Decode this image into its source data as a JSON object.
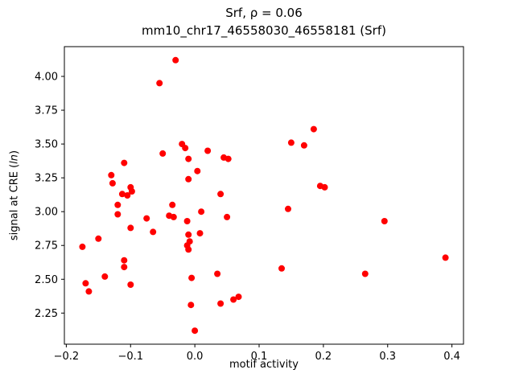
{
  "chart_data": {
    "type": "scatter",
    "title": "Srf, ρ = 0.06",
    "subtitle": "mm10_chr17_46558030_46558181 (Srf)",
    "xlabel": "motif activity",
    "ylabel": "signal at CRE (ln)",
    "ylabel_parts": {
      "prefix": "signal at CRE (",
      "italic": "ln",
      "suffix": ")"
    },
    "point_color": "#ff0000",
    "grid": false,
    "legend": "none",
    "xlim": [
      -0.203,
      0.418
    ],
    "ylim": [
      2.02,
      4.22
    ],
    "xtick_values": [
      -0.2,
      -0.1,
      0.0,
      0.1,
      0.2,
      0.3,
      0.4
    ],
    "xtick_labels": [
      "−0.2",
      "−0.1",
      "0.0",
      "0.1",
      "0.2",
      "0.3",
      "0.4"
    ],
    "ytick_values": [
      2.25,
      2.5,
      2.75,
      3.0,
      3.25,
      3.5,
      3.75,
      4.0
    ],
    "ytick_labels": [
      "2.25",
      "2.50",
      "2.75",
      "3.00",
      "3.25",
      "3.50",
      "3.75",
      "4.00"
    ],
    "points": [
      [
        -0.175,
        2.74
      ],
      [
        -0.17,
        2.47
      ],
      [
        -0.165,
        2.41
      ],
      [
        -0.15,
        2.8
      ],
      [
        -0.14,
        2.52
      ],
      [
        -0.13,
        3.27
      ],
      [
        -0.128,
        3.21
      ],
      [
        -0.12,
        3.05
      ],
      [
        -0.12,
        2.98
      ],
      [
        -0.113,
        3.13
      ],
      [
        -0.11,
        3.36
      ],
      [
        -0.11,
        2.64
      ],
      [
        -0.11,
        2.59
      ],
      [
        -0.105,
        3.12
      ],
      [
        -0.1,
        3.18
      ],
      [
        -0.098,
        3.15
      ],
      [
        -0.1,
        2.88
      ],
      [
        -0.1,
        2.46
      ],
      [
        -0.075,
        2.95
      ],
      [
        -0.065,
        2.85
      ],
      [
        -0.055,
        3.95
      ],
      [
        -0.05,
        3.43
      ],
      [
        -0.04,
        2.97
      ],
      [
        -0.035,
        3.05
      ],
      [
        -0.033,
        2.96
      ],
      [
        -0.03,
        4.12
      ],
      [
        -0.02,
        3.5
      ],
      [
        -0.015,
        3.47
      ],
      [
        -0.01,
        3.39
      ],
      [
        -0.01,
        3.24
      ],
      [
        -0.012,
        2.93
      ],
      [
        -0.01,
        2.83
      ],
      [
        -0.008,
        2.78
      ],
      [
        -0.012,
        2.75
      ],
      [
        -0.01,
        2.72
      ],
      [
        -0.005,
        2.51
      ],
      [
        -0.006,
        2.31
      ],
      [
        0.0,
        2.12
      ],
      [
        0.004,
        3.3
      ],
      [
        0.01,
        3.0
      ],
      [
        0.008,
        2.84
      ],
      [
        0.02,
        3.45
      ],
      [
        0.035,
        2.54
      ],
      [
        0.04,
        3.13
      ],
      [
        0.045,
        3.4
      ],
      [
        0.052,
        3.39
      ],
      [
        0.05,
        2.96
      ],
      [
        0.04,
        2.32
      ],
      [
        0.06,
        2.35
      ],
      [
        0.068,
        2.37
      ],
      [
        0.135,
        2.58
      ],
      [
        0.145,
        3.02
      ],
      [
        0.15,
        3.51
      ],
      [
        0.17,
        3.49
      ],
      [
        0.185,
        3.61
      ],
      [
        0.195,
        3.19
      ],
      [
        0.202,
        3.18
      ],
      [
        0.265,
        2.54
      ],
      [
        0.295,
        2.93
      ],
      [
        0.39,
        2.66
      ]
    ]
  }
}
